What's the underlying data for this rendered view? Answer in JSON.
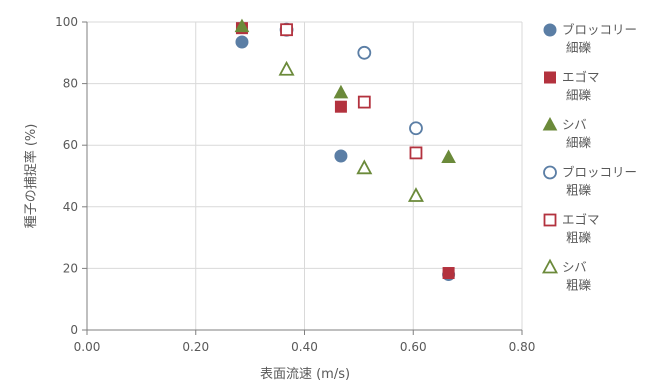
{
  "chart_data": {
    "type": "scatter",
    "title": "",
    "xlabel": "表面流速 (m/s)",
    "ylabel": "種子の捕捉率 (%)",
    "xlim": [
      0,
      0.8
    ],
    "ylim": [
      0,
      100
    ],
    "xticks": [
      "0.00",
      "0.20",
      "0.40",
      "0.60",
      "0.80"
    ],
    "xtick_values": [
      0,
      0.2,
      0.4,
      0.6,
      0.8
    ],
    "yticks": [
      "0",
      "20",
      "40",
      "60",
      "80",
      "100"
    ],
    "ytick_values": [
      0,
      20,
      40,
      60,
      80,
      100
    ],
    "grid": true,
    "legend_position": "right",
    "series": [
      {
        "name": "ブロッコリー細礫",
        "legend_lines": [
          "ブロッコリー",
          "細礫"
        ],
        "marker": "circle",
        "filled": true,
        "color": "#5b7ea5",
        "points": [
          [
            0.285,
            93.5
          ],
          [
            0.467,
            56.5
          ],
          [
            0.665,
            18
          ]
        ]
      },
      {
        "name": "エゴマ細礫",
        "legend_lines": [
          "エゴマ",
          "細礫"
        ],
        "marker": "square",
        "filled": true,
        "color": "#b3323e",
        "points": [
          [
            0.285,
            98
          ],
          [
            0.467,
            72.5
          ],
          [
            0.665,
            18.5
          ]
        ]
      },
      {
        "name": "シバ細礫",
        "legend_lines": [
          "シバ",
          "細礫"
        ],
        "marker": "triangle",
        "filled": true,
        "color": "#6b8a3a",
        "points": [
          [
            0.285,
            98.5
          ],
          [
            0.467,
            77
          ],
          [
            0.665,
            56
          ]
        ]
      },
      {
        "name": "ブロッコリー粗礫",
        "legend_lines": [
          "ブロッコリー",
          "粗礫"
        ],
        "marker": "circle",
        "filled": false,
        "color": "#5b7ea5",
        "points": [
          [
            0.367,
            97.5
          ],
          [
            0.51,
            90
          ],
          [
            0.605,
            65.5
          ]
        ]
      },
      {
        "name": "エゴマ粗礫",
        "legend_lines": [
          "エゴマ",
          "粗礫"
        ],
        "marker": "square",
        "filled": false,
        "color": "#b3323e",
        "points": [
          [
            0.367,
            97.5
          ],
          [
            0.51,
            74
          ],
          [
            0.605,
            57.5
          ]
        ]
      },
      {
        "name": "シバ粗礫",
        "legend_lines": [
          "シバ",
          "粗礫"
        ],
        "marker": "triangle",
        "filled": false,
        "color": "#6b8a3a",
        "points": [
          [
            0.367,
            84.5
          ],
          [
            0.51,
            52.5
          ],
          [
            0.605,
            43.5
          ]
        ]
      }
    ]
  }
}
